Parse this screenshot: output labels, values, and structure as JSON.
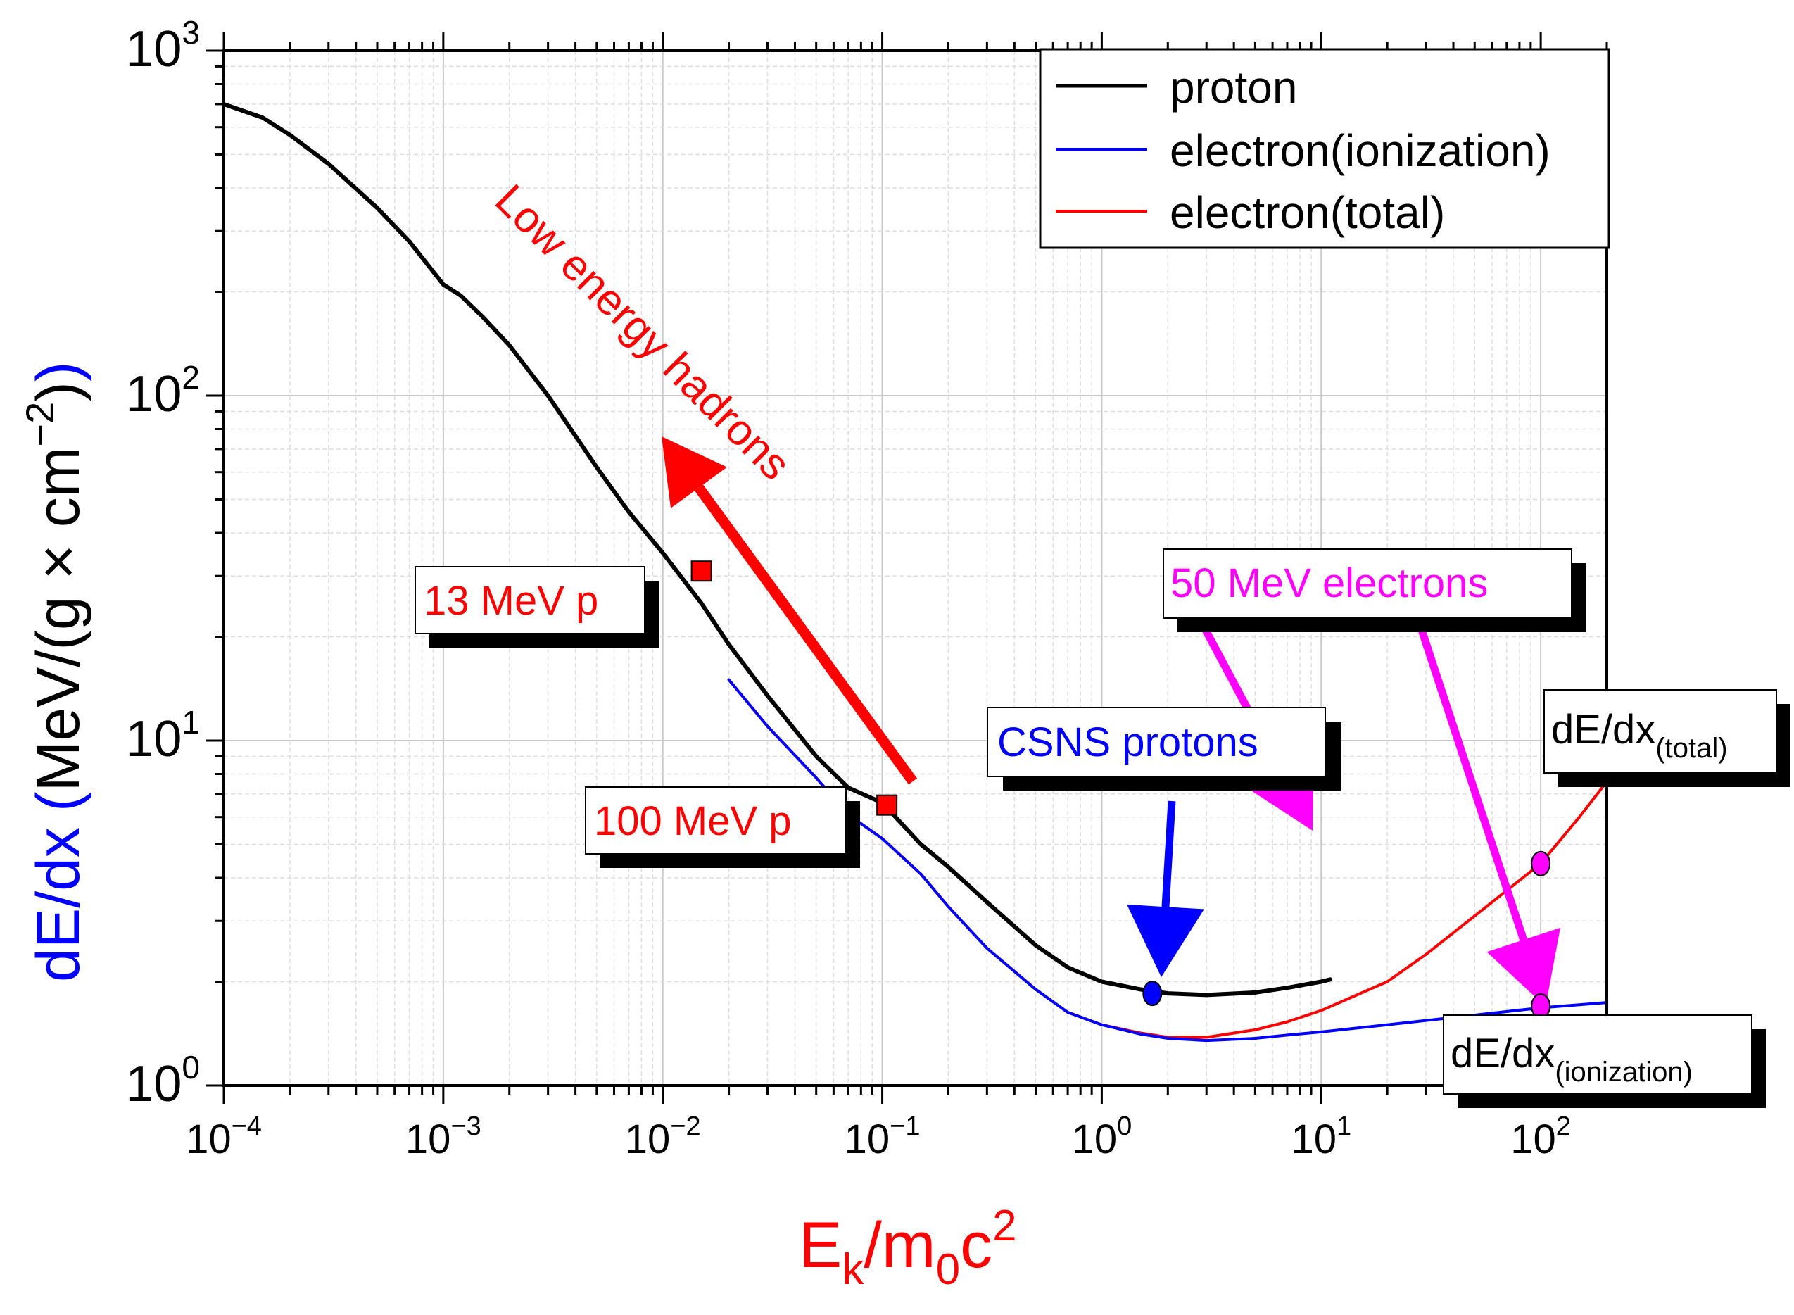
{
  "chart_data": {
    "type": "line",
    "title": "",
    "xlabel": {
      "base": "E",
      "sub1": "k",
      "mid": "/m",
      "sub2": "0",
      "tail": "c",
      "sup": "2",
      "color": "#ff0000"
    },
    "ylabel": {
      "part1": "dE/dx",
      "part1_color": "#0000ff",
      "paren_open": "(",
      "units": "MeV/(g × cm",
      "sup": "−2",
      "units_close": ")",
      "paren_close": ")",
      "paren_color": "#0000ff"
    },
    "x_scale": "log",
    "y_scale": "log",
    "xlim": [
      0.0001,
      200
    ],
    "ylim": [
      1,
      1000
    ],
    "x_ticks": [
      {
        "base": "10",
        "exp": "−4",
        "value": 0.0001
      },
      {
        "base": "10",
        "exp": "−3",
        "value": 0.001
      },
      {
        "base": "10",
        "exp": "−2",
        "value": 0.01
      },
      {
        "base": "10",
        "exp": "−1",
        "value": 0.1
      },
      {
        "base": "10",
        "exp": "0",
        "value": 1
      },
      {
        "base": "10",
        "exp": "1",
        "value": 10
      },
      {
        "base": "10",
        "exp": "2",
        "value": 100
      }
    ],
    "y_ticks": [
      {
        "base": "10",
        "exp": "0",
        "value": 1
      },
      {
        "base": "10",
        "exp": "1",
        "value": 10
      },
      {
        "base": "10",
        "exp": "2",
        "value": 100
      },
      {
        "base": "10",
        "exp": "3",
        "value": 1000
      }
    ],
    "grid": true,
    "legend_position": "top-right",
    "series": [
      {
        "name": "proton",
        "color": "#000000",
        "x": [
          0.0001,
          0.00015,
          0.0002,
          0.0003,
          0.0005,
          0.0007,
          0.001,
          0.0012,
          0.0015,
          0.002,
          0.003,
          0.005,
          0.007,
          0.01,
          0.015,
          0.02,
          0.03,
          0.05,
          0.07,
          0.1,
          0.15,
          0.2,
          0.3,
          0.5,
          0.7,
          1,
          1.5,
          2,
          3,
          5,
          7,
          10,
          11
        ],
        "y": [
          700,
          640,
          570,
          470,
          350,
          280,
          210,
          195,
          170,
          140,
          100,
          62,
          46,
          35,
          25,
          19,
          13.5,
          9,
          7.3,
          6.6,
          5.0,
          4.3,
          3.4,
          2.55,
          2.2,
          2.0,
          1.9,
          1.85,
          1.83,
          1.86,
          1.92,
          2.0,
          2.03
        ]
      },
      {
        "name": "electron(ionization)",
        "color": "#0000ff",
        "x": [
          0.02,
          0.03,
          0.05,
          0.07,
          0.1,
          0.15,
          0.2,
          0.3,
          0.5,
          0.7,
          1,
          1.5,
          2,
          3,
          5,
          7,
          10,
          20,
          50,
          100,
          200
        ],
        "y": [
          15,
          11,
          7.8,
          6.1,
          5.2,
          4.1,
          3.3,
          2.5,
          1.9,
          1.63,
          1.5,
          1.41,
          1.37,
          1.35,
          1.37,
          1.4,
          1.43,
          1.5,
          1.6,
          1.68,
          1.74
        ]
      },
      {
        "name": "electron(total)",
        "color": "#ff0000",
        "x": [
          0.02,
          0.03,
          0.05,
          0.07,
          0.1,
          0.15,
          0.2,
          0.3,
          0.5,
          0.7,
          1,
          1.5,
          2,
          3,
          5,
          7,
          10,
          20,
          30,
          50,
          100,
          150,
          200
        ],
        "y": [
          15,
          11,
          7.8,
          6.1,
          5.2,
          4.1,
          3.3,
          2.5,
          1.9,
          1.63,
          1.5,
          1.42,
          1.38,
          1.38,
          1.45,
          1.53,
          1.65,
          2.0,
          2.4,
          3.1,
          4.4,
          6.0,
          7.6
        ]
      }
    ],
    "markers": [
      {
        "label": "13 MeV p",
        "x": 0.015,
        "y": 31,
        "shape": "square",
        "color": "#ff0000"
      },
      {
        "label": "100 MeV p",
        "x": 0.105,
        "y": 6.5,
        "shape": "square",
        "color": "#ff0000"
      },
      {
        "label": "CSNS protons",
        "x": 1.7,
        "y": 1.85,
        "shape": "circle",
        "color": "#0000ff"
      },
      {
        "label": "dE/dx(total)",
        "x": 100,
        "y": 4.4,
        "shape": "circle",
        "color": "#ff00ff"
      },
      {
        "label": "dE/dx(ionization)",
        "x": 100,
        "y": 1.7,
        "shape": "circle",
        "color": "#ff00ff"
      }
    ],
    "annotations": {
      "low_energy": {
        "text": "Low energy hadrons",
        "color": "#ff0000"
      },
      "p13": {
        "text": "13 MeV p",
        "color": "#ff0000"
      },
      "p100": {
        "text": "100 MeV p",
        "color": "#ff0000"
      },
      "csns": {
        "text": "CSNS protons",
        "color": "#0000ff"
      },
      "e50": {
        "text": "50 MeV electrons",
        "color": "#ff00ff"
      },
      "total": {
        "base": "dE/dx",
        "sub": "(total)",
        "color": "#000000"
      },
      "ionization": {
        "base": "dE/dx",
        "sub": "(ionization)",
        "color": "#000000"
      }
    }
  }
}
